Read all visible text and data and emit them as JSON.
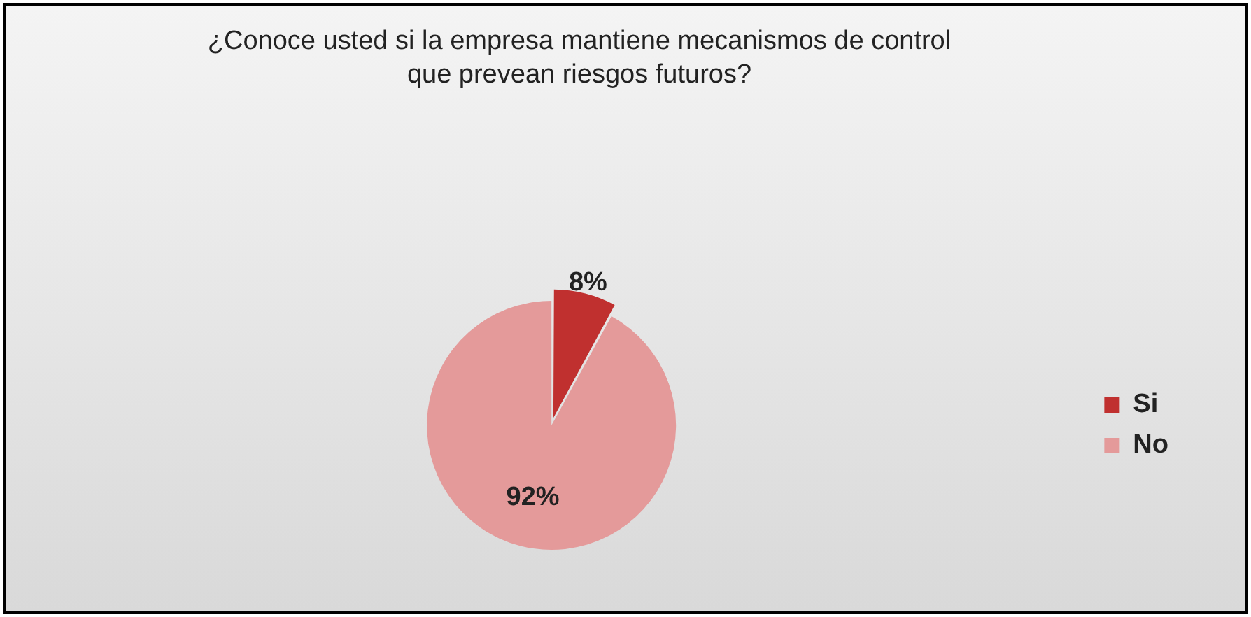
{
  "chart_data": {
    "type": "pie",
    "title": "¿Conoce usted si la empresa mantiene mecanismos de control que prevean riesgos futuros?",
    "categories": [
      "Si",
      "No"
    ],
    "values": [
      8,
      92
    ],
    "colors": [
      "#c0302f",
      "#e49a9a"
    ],
    "value_labels": [
      "8%",
      "92%"
    ],
    "legend": "right"
  }
}
